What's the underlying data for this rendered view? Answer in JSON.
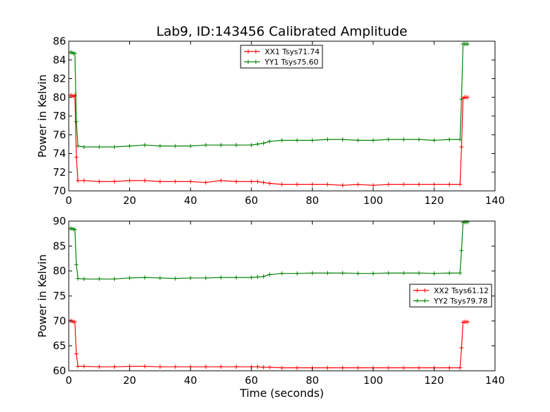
{
  "chart_data": [
    {
      "type": "line",
      "title": "Lab9, ID:143456 Calibrated Amplitude",
      "xlabel": "",
      "ylabel": "Power in Kelvin",
      "xlim": [
        0,
        140
      ],
      "ylim": [
        70,
        86
      ],
      "xticks": [
        0,
        20,
        40,
        60,
        80,
        100,
        120,
        140
      ],
      "yticks": [
        70,
        72,
        74,
        76,
        78,
        80,
        82,
        84,
        86
      ],
      "legend_position": "top-center",
      "series": [
        {
          "name": "XX1 Tsys71.74",
          "color": "#ff0000",
          "x": [
            0.5,
            1.0,
            1.5,
            2.0,
            2.5,
            3,
            5,
            10,
            15,
            20,
            25,
            30,
            35,
            40,
            45,
            50,
            55,
            60,
            62,
            64,
            66,
            70,
            75,
            80,
            85,
            90,
            95,
            100,
            105,
            110,
            115,
            120,
            125,
            128.5,
            129,
            129.5,
            130,
            130.5,
            131
          ],
          "y": [
            80.2,
            80.2,
            80.1,
            80.2,
            73.6,
            71.1,
            71.1,
            71.0,
            71.0,
            71.1,
            71.1,
            71.0,
            71.0,
            71.0,
            70.9,
            71.1,
            71.0,
            71.0,
            71.0,
            70.9,
            70.8,
            70.7,
            70.7,
            70.7,
            70.7,
            70.6,
            70.7,
            70.6,
            70.7,
            70.7,
            70.7,
            70.7,
            70.7,
            70.7,
            74.7,
            79.9,
            80.0,
            80.0,
            80.0
          ]
        },
        {
          "name": "YY1 Tsys75.60",
          "color": "#008000",
          "x": [
            0.5,
            1.0,
            1.5,
            2.0,
            2.5,
            3,
            5,
            10,
            15,
            20,
            25,
            30,
            35,
            40,
            45,
            50,
            55,
            60,
            62,
            64,
            66,
            70,
            75,
            80,
            85,
            90,
            95,
            100,
            105,
            110,
            115,
            120,
            125,
            128.5,
            129,
            129.5,
            130,
            130.5,
            131
          ],
          "y": [
            84.8,
            84.8,
            84.7,
            84.7,
            77.4,
            74.8,
            74.7,
            74.7,
            74.7,
            74.8,
            74.9,
            74.8,
            74.8,
            74.8,
            74.9,
            74.9,
            74.9,
            74.9,
            75.0,
            75.1,
            75.3,
            75.4,
            75.4,
            75.4,
            75.5,
            75.5,
            75.4,
            75.4,
            75.5,
            75.5,
            75.5,
            75.4,
            75.5,
            75.5,
            79.8,
            85.7,
            85.7,
            85.7,
            85.7
          ]
        }
      ]
    },
    {
      "type": "line",
      "title": "",
      "xlabel": "Time (seconds)",
      "ylabel": "Power in Kelvin",
      "xlim": [
        0,
        140
      ],
      "ylim": [
        60,
        90
      ],
      "xticks": [
        0,
        20,
        40,
        60,
        80,
        100,
        120,
        140
      ],
      "yticks": [
        60,
        65,
        70,
        75,
        80,
        85,
        90
      ],
      "legend_position": "center-right",
      "series": [
        {
          "name": "XX2 Tsys61.12",
          "color": "#ff0000",
          "x": [
            0.5,
            1.0,
            1.5,
            2.0,
            2.5,
            3,
            5,
            10,
            15,
            20,
            25,
            30,
            35,
            40,
            45,
            50,
            55,
            60,
            62,
            64,
            66,
            70,
            75,
            80,
            85,
            90,
            95,
            100,
            105,
            110,
            115,
            120,
            125,
            128.5,
            129,
            129.5,
            130,
            130.5,
            131
          ],
          "y": [
            70.0,
            70.0,
            69.8,
            69.8,
            63.4,
            60.9,
            60.9,
            60.8,
            60.8,
            60.9,
            60.9,
            60.8,
            60.8,
            60.8,
            60.8,
            60.8,
            60.8,
            60.8,
            60.8,
            60.7,
            60.7,
            60.6,
            60.6,
            60.6,
            60.6,
            60.6,
            60.6,
            60.6,
            60.6,
            60.6,
            60.6,
            60.6,
            60.6,
            60.6,
            64.6,
            69.7,
            69.8,
            69.8,
            69.8
          ]
        },
        {
          "name": "YY2 Tsys79.78",
          "color": "#008000",
          "x": [
            0.5,
            1.0,
            1.5,
            2.0,
            2.5,
            3,
            5,
            10,
            15,
            20,
            25,
            30,
            35,
            40,
            45,
            50,
            55,
            60,
            62,
            64,
            66,
            70,
            75,
            80,
            85,
            90,
            95,
            100,
            105,
            110,
            115,
            120,
            125,
            128.5,
            129,
            129.5,
            130,
            130.5,
            131
          ],
          "y": [
            88.5,
            88.5,
            88.4,
            88.3,
            81.3,
            78.5,
            78.4,
            78.4,
            78.4,
            78.6,
            78.7,
            78.6,
            78.5,
            78.6,
            78.6,
            78.7,
            78.7,
            78.7,
            78.8,
            78.9,
            79.3,
            79.5,
            79.5,
            79.6,
            79.6,
            79.6,
            79.5,
            79.5,
            79.6,
            79.6,
            79.6,
            79.5,
            79.6,
            79.6,
            84.1,
            89.7,
            89.8,
            89.8,
            89.8
          ]
        }
      ]
    }
  ]
}
